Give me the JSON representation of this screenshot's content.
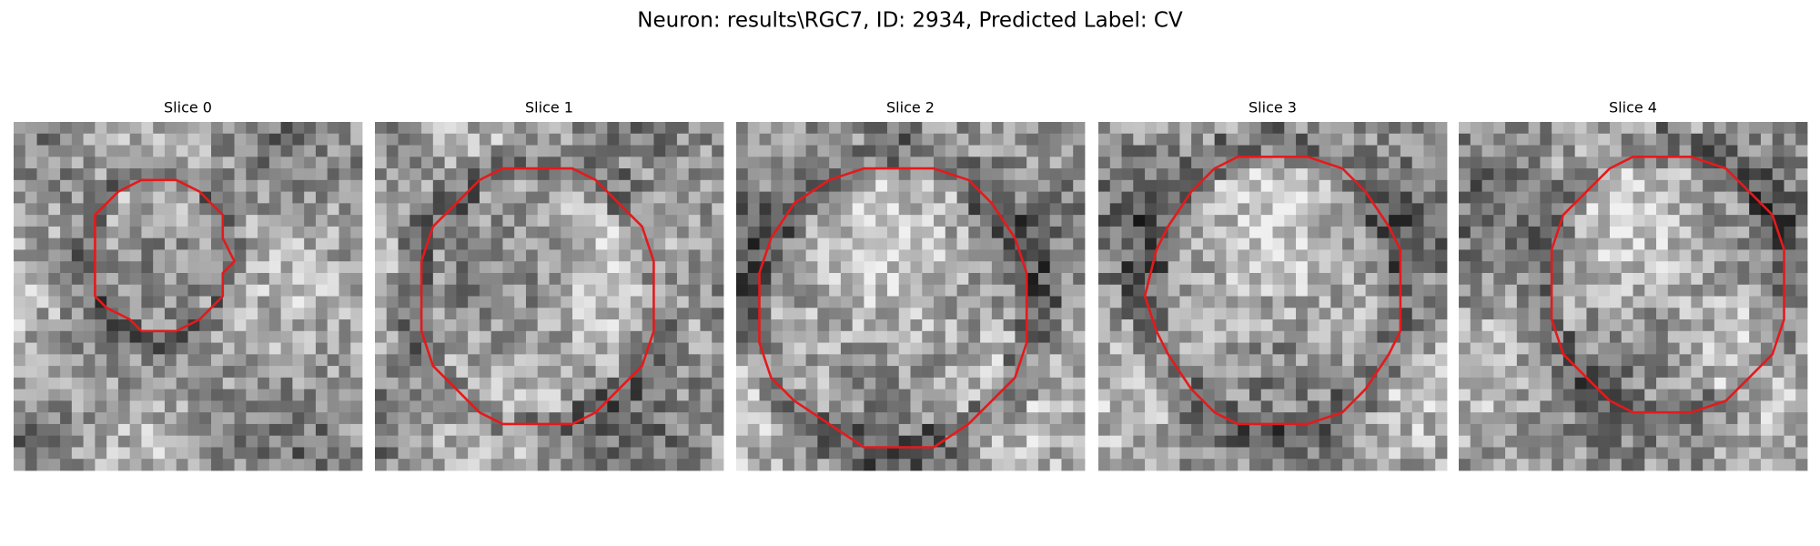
{
  "figure": {
    "title": "Neuron: results\\RGC7, ID: 2934, Predicted Label: CV",
    "panels": [
      {
        "title": "Slice 0"
      },
      {
        "title": "Slice 1"
      },
      {
        "title": "Slice 2"
      },
      {
        "title": "Slice 3"
      },
      {
        "title": "Slice 4"
      }
    ]
  }
}
